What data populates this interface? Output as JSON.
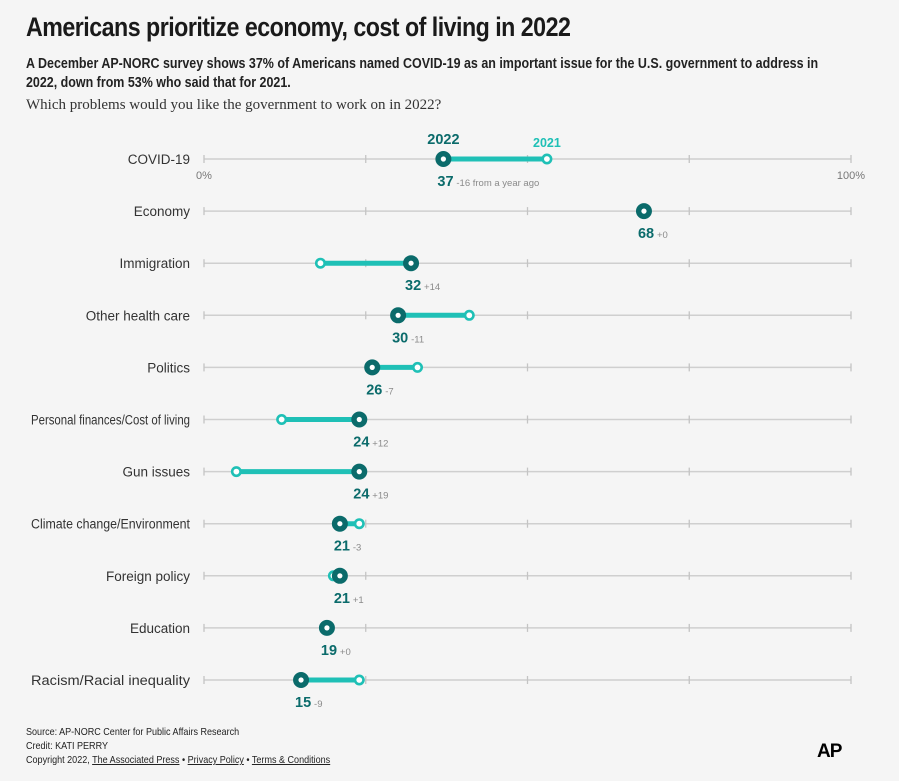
{
  "header": {
    "title": "Americans prioritize economy, cost of living in 2022",
    "subtitle": "A December AP-NORC survey shows 37% of Americans named COVID-19 as an important issue for the U.S. government to address in 2022, down from 53% who said that for 2021.",
    "question": "Which problems would you like the government to work on in 2022?"
  },
  "chart_data": {
    "type": "dumbbell",
    "series": [
      {
        "name": "2022",
        "color": "#0b6b6b"
      },
      {
        "name": "2021",
        "color": "#1fc0b6"
      }
    ],
    "axis": {
      "min": 0,
      "max": 100,
      "tick_labels": [
        "0%",
        "100%"
      ],
      "gridlines": [
        0,
        25,
        50,
        75,
        100
      ]
    },
    "rows": [
      {
        "label": "COVID-19",
        "v2022": 37,
        "v2021": 53,
        "value_label": "37",
        "change_label": "-16 from a year ago"
      },
      {
        "label": "Economy",
        "v2022": 68,
        "v2021": 68,
        "value_label": "68",
        "change_label": "+0"
      },
      {
        "label": "Immigration",
        "v2022": 32,
        "v2021": 18,
        "value_label": "32",
        "change_label": "+14"
      },
      {
        "label": "Other health care",
        "v2022": 30,
        "v2021": 41,
        "value_label": "30",
        "change_label": "-11"
      },
      {
        "label": "Politics",
        "v2022": 26,
        "v2021": 33,
        "value_label": "26",
        "change_label": "-7"
      },
      {
        "label": "Personal finances/Cost of living",
        "v2022": 24,
        "v2021": 12,
        "value_label": "24",
        "change_label": "+12"
      },
      {
        "label": "Gun issues",
        "v2022": 24,
        "v2021": 5,
        "value_label": "24",
        "change_label": "+19"
      },
      {
        "label": "Climate change/Environment",
        "v2022": 21,
        "v2021": 24,
        "value_label": "21",
        "change_label": "-3"
      },
      {
        "label": "Foreign policy",
        "v2022": 21,
        "v2021": 20,
        "value_label": "21",
        "change_label": "+1"
      },
      {
        "label": "Education",
        "v2022": 19,
        "v2021": 19,
        "value_label": "19",
        "change_label": "+0"
      },
      {
        "label": "Racism/Racial inequality",
        "v2022": 15,
        "v2021": 24,
        "value_label": "15",
        "change_label": "-9"
      }
    ]
  },
  "footer": {
    "source": "Source: AP-NORC Center for Public Affairs Research",
    "credit": "Credit: KATI PERRY",
    "copyright": "Copyright 2022,",
    "ap_link": "The Associated Press",
    "privacy": "Privacy Policy",
    "terms": "Terms & Conditions",
    "separator": "•"
  },
  "logo": "AP"
}
